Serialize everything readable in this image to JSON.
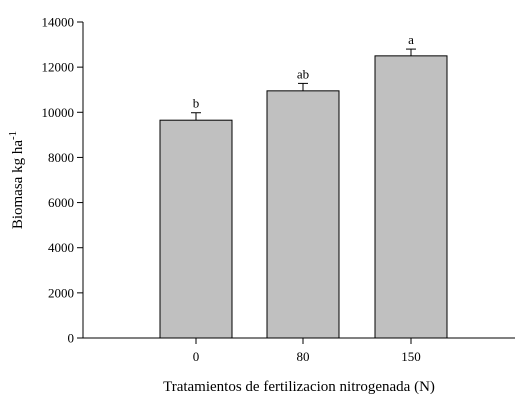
{
  "chart_data": {
    "type": "bar",
    "categories": [
      "0",
      "80",
      "150"
    ],
    "values": [
      9650,
      10950,
      12500
    ],
    "error": [
      330,
      330,
      300
    ],
    "significance": [
      "b",
      "ab",
      "a"
    ],
    "xlabel": "Tratamientos de fertilizacion nitrogenada (N)",
    "ylabel": "Biomasa kg ha",
    "ylabel_superscript": "-1",
    "ylim": [
      0,
      14000
    ],
    "yticks": [
      "0",
      "2000",
      "4000",
      "6000",
      "8000",
      "10000",
      "12000",
      "14000"
    ],
    "bar_color": "#c0c0c0",
    "grid": false,
    "legend": "none"
  }
}
